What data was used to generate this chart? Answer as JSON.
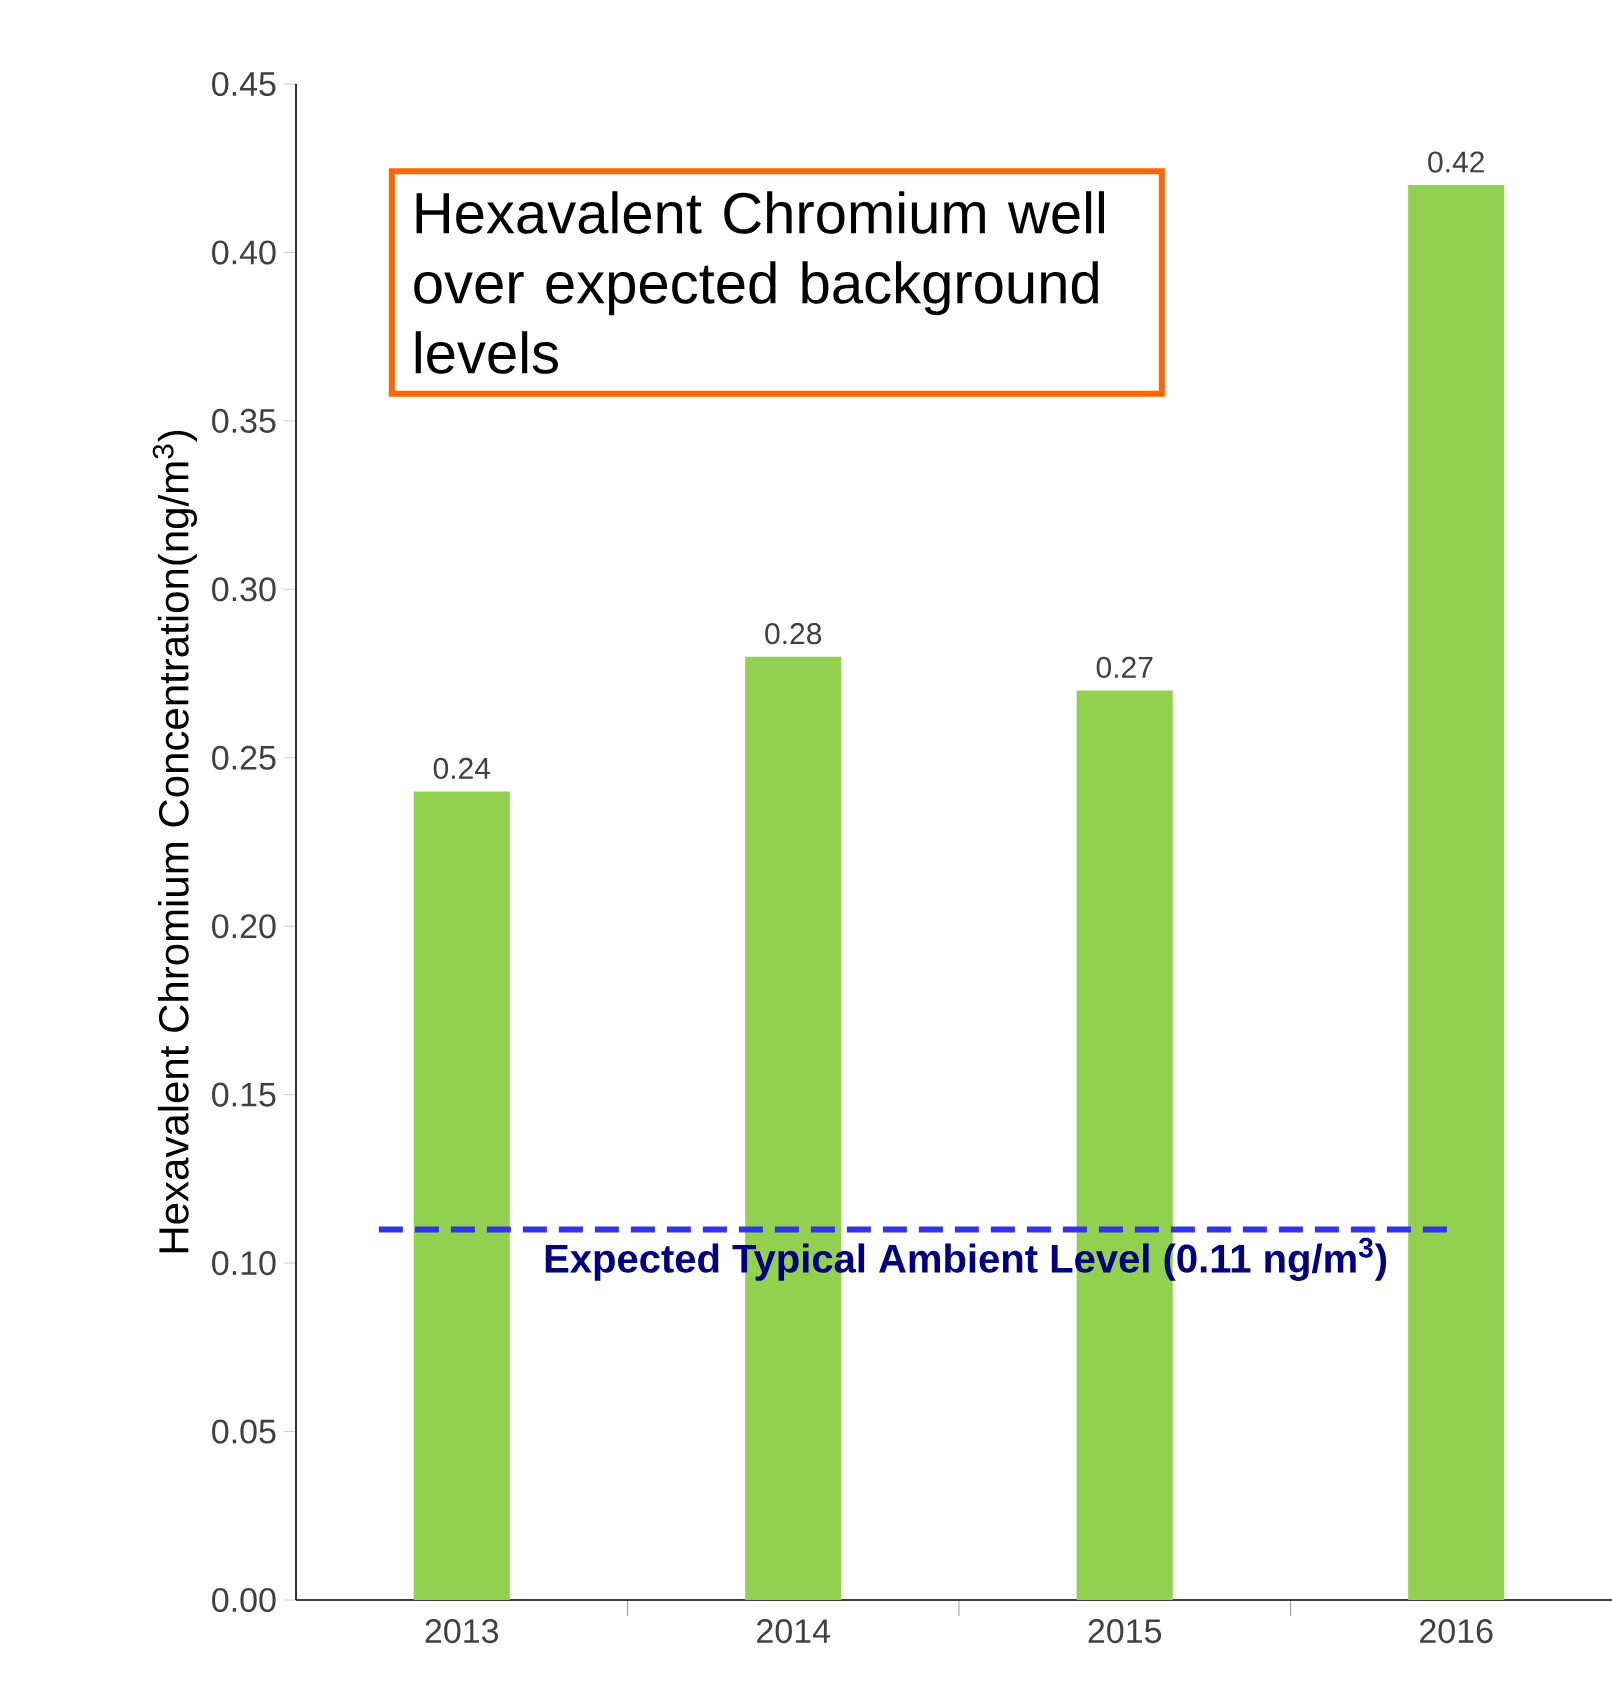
{
  "chart_data": {
    "type": "bar",
    "ylabel": "Hexavalent Chromium Concentration(ng/m$^{3}$)",
    "categories": [
      "2013",
      "2014",
      "2015",
      "2016"
    ],
    "values": [
      0.24,
      0.28,
      0.27,
      0.42
    ],
    "color": "#92d050",
    "data_labels": true,
    "ylim": [
      0,
      0.45
    ],
    "yticks": [
      {
        "value": 0,
        "label": "0.00"
      },
      {
        "value": 0.05,
        "label": "0.05"
      },
      {
        "value": 0.1,
        "label": "0.10"
      },
      {
        "value": 0.15,
        "label": "0.15"
      },
      {
        "value": 0.2,
        "label": "0.20"
      },
      {
        "value": 0.25,
        "label": "0.25"
      },
      {
        "value": 0.3,
        "label": "0.30"
      },
      {
        "value": 0.35,
        "label": "0.35"
      },
      {
        "value": 0.4,
        "label": "0.40"
      },
      {
        "value": 0.45,
        "label": "0.45"
      }
    ],
    "ref_lines": [
      {
        "axis": "y",
        "value": 0.11,
        "label": "Expected Typical Ambient Level (0.11 ng/m$^{3}$)",
        "color": "#3333ee",
        "line_style": "dashed"
      }
    ],
    "annotations": [
      "Hexavalent Chromium well over expected background levels"
    ],
    "grid": false
  }
}
